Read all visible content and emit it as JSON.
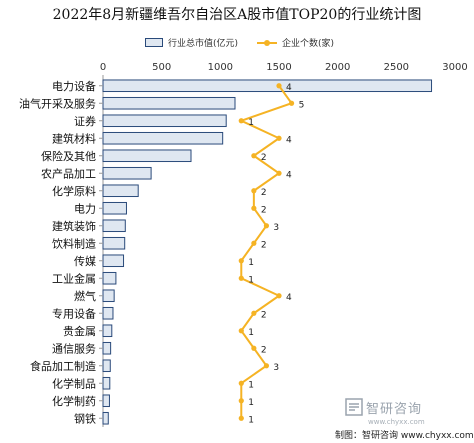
{
  "title": "2022年8月新疆维吾尔自治区A股市值TOP20的行业统计图",
  "legend": {
    "bar": "行业总市值(亿元)",
    "line": "企业个数(家)"
  },
  "source": "制图：智研咨询 www.chyxx.com",
  "watermark": "智研咨询",
  "watermark_url": "www.chyxx.com",
  "colors": {
    "bar_fill": "#dfe7f1",
    "bar_stroke": "#2a4a7a",
    "line": "#f5b324",
    "axis": "#999999"
  },
  "chart_data": {
    "type": "bar",
    "orientation": "horizontal",
    "categories": [
      "电力设备",
      "油气开采及服务",
      "证券",
      "建筑材料",
      "保险及其他",
      "农产品加工",
      "化学原料",
      "电力",
      "建筑装饰",
      "饮料制造",
      "传媒",
      "工业金属",
      "燃气",
      "专用设备",
      "贵金属",
      "通信服务",
      "食品加工制造",
      "化学制品",
      "化学制药",
      "钢铁"
    ],
    "series": [
      {
        "name": "行业总市值(亿元)",
        "type": "bar",
        "values": [
          2800,
          1125,
          1050,
          1020,
          750,
          410,
          300,
          200,
          190,
          185,
          175,
          110,
          95,
          85,
          75,
          65,
          62,
          58,
          55,
          45
        ]
      },
      {
        "name": "企业个数(家)",
        "type": "line",
        "values": [
          4,
          5,
          1,
          4,
          2,
          4,
          2,
          2,
          3,
          2,
          1,
          1,
          4,
          2,
          1,
          2,
          3,
          1,
          1,
          1
        ]
      }
    ],
    "x_ticks": [
      0,
      500,
      1000,
      1500,
      2000,
      2500,
      3000
    ],
    "xlim": [
      0,
      3000
    ],
    "line_xlim": [
      -10,
      18
    ]
  }
}
